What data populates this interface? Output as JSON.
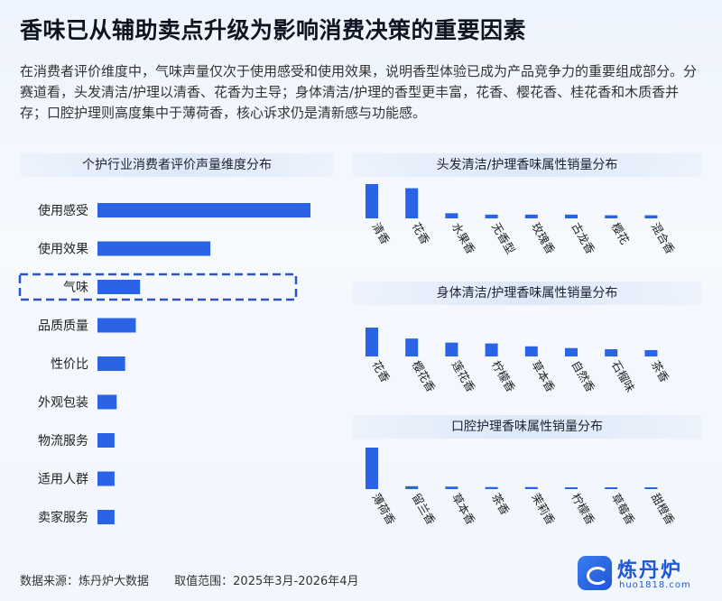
{
  "title": "香味已从辅助卖点升级为影响消费决策的重要因素",
  "intro": "在消费者评价维度中，气味声量仅次于使用感受和使用效果，说明香型体验已成为产品竞争力的重要组成部分。分赛道看，头发清洁/护理以清香、花香为主导；身体清洁/护理的香型更丰富，花香、樱花香、桂花香和木质香并存；口腔护理则高度集中于薄荷香，核心诉求仍是清新感与功能感。",
  "colors": {
    "bar": "#2a63e6",
    "highlight_border": "#2a55c8",
    "text": "#222222"
  },
  "footer": {
    "source": "数据来源：炼丹炉大数据",
    "range": "取值范围：2025年3月-2026年4月"
  },
  "brand": {
    "name": "炼丹炉",
    "url": "huo1818.com"
  },
  "chart_data": [
    {
      "type": "bar",
      "orientation": "horizontal",
      "title": "个护行业消费者评价声量维度分布",
      "categories": [
        "使用感受",
        "使用效果",
        "气味",
        "品质质量",
        "性价比",
        "外观包装",
        "物流服务",
        "适用人群",
        "卖家服务"
      ],
      "values": [
        100,
        53,
        20,
        18,
        13,
        9,
        8,
        8,
        8
      ],
      "highlight": "气味",
      "xlim": [
        0,
        100
      ],
      "grid": false
    },
    {
      "type": "bar",
      "title": "头发清洁/护理香味属性销量分布",
      "categories": [
        "清香",
        "花香",
        "水果香",
        "无香型",
        "玫瑰香",
        "古龙香",
        "樱花",
        "混合香"
      ],
      "values": [
        100,
        88,
        15,
        11,
        11,
        11,
        9,
        9
      ],
      "ylim": [
        0,
        100
      ],
      "grid": false
    },
    {
      "type": "bar",
      "title": "身体清洁/护理香味属性销量分布",
      "categories": [
        "花香",
        "樱花香",
        "莲花香",
        "柠檬香",
        "草本香",
        "自然香",
        "石榴味",
        "茶香"
      ],
      "values": [
        100,
        62,
        48,
        45,
        35,
        29,
        25,
        22
      ],
      "ylim": [
        0,
        100
      ],
      "grid": false
    },
    {
      "type": "bar",
      "title": "口腔护理香味属性销量分布",
      "categories": [
        "薄荷香",
        "留兰香",
        "草本香",
        "茶香",
        "茉莉香",
        "柠檬香",
        "草莓香",
        "甜橙香"
      ],
      "values": [
        100,
        7,
        6,
        5,
        5,
        4,
        4,
        4
      ],
      "ylim": [
        0,
        100
      ],
      "grid": false
    }
  ]
}
